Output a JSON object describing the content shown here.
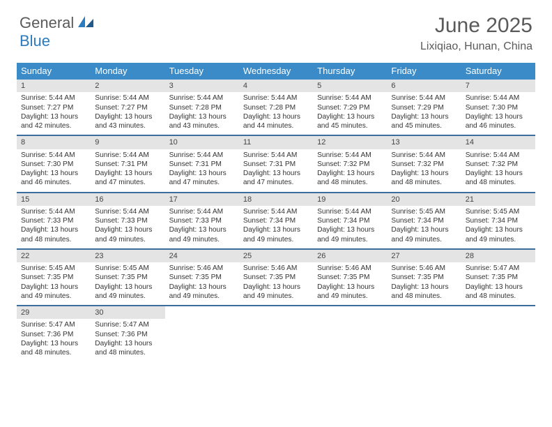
{
  "logo": {
    "general": "General",
    "blue": "Blue"
  },
  "title": "June 2025",
  "location": "Lixiqiao, Hunan, China",
  "colors": {
    "header_bg": "#3b8bc8",
    "header_text": "#ffffff",
    "row_border": "#3b6e9e",
    "daynum_bg": "#e4e4e4",
    "text": "#333333",
    "title_color": "#5a5a5a",
    "logo_blue": "#2b7bbf"
  },
  "day_headers": [
    "Sunday",
    "Monday",
    "Tuesday",
    "Wednesday",
    "Thursday",
    "Friday",
    "Saturday"
  ],
  "weeks": [
    [
      {
        "num": "1",
        "sunrise": "5:44 AM",
        "sunset": "7:27 PM",
        "daylight": "13 hours and 42 minutes."
      },
      {
        "num": "2",
        "sunrise": "5:44 AM",
        "sunset": "7:27 PM",
        "daylight": "13 hours and 43 minutes."
      },
      {
        "num": "3",
        "sunrise": "5:44 AM",
        "sunset": "7:28 PM",
        "daylight": "13 hours and 43 minutes."
      },
      {
        "num": "4",
        "sunrise": "5:44 AM",
        "sunset": "7:28 PM",
        "daylight": "13 hours and 44 minutes."
      },
      {
        "num": "5",
        "sunrise": "5:44 AM",
        "sunset": "7:29 PM",
        "daylight": "13 hours and 45 minutes."
      },
      {
        "num": "6",
        "sunrise": "5:44 AM",
        "sunset": "7:29 PM",
        "daylight": "13 hours and 45 minutes."
      },
      {
        "num": "7",
        "sunrise": "5:44 AM",
        "sunset": "7:30 PM",
        "daylight": "13 hours and 46 minutes."
      }
    ],
    [
      {
        "num": "8",
        "sunrise": "5:44 AM",
        "sunset": "7:30 PM",
        "daylight": "13 hours and 46 minutes."
      },
      {
        "num": "9",
        "sunrise": "5:44 AM",
        "sunset": "7:31 PM",
        "daylight": "13 hours and 47 minutes."
      },
      {
        "num": "10",
        "sunrise": "5:44 AM",
        "sunset": "7:31 PM",
        "daylight": "13 hours and 47 minutes."
      },
      {
        "num": "11",
        "sunrise": "5:44 AM",
        "sunset": "7:31 PM",
        "daylight": "13 hours and 47 minutes."
      },
      {
        "num": "12",
        "sunrise": "5:44 AM",
        "sunset": "7:32 PM",
        "daylight": "13 hours and 48 minutes."
      },
      {
        "num": "13",
        "sunrise": "5:44 AM",
        "sunset": "7:32 PM",
        "daylight": "13 hours and 48 minutes."
      },
      {
        "num": "14",
        "sunrise": "5:44 AM",
        "sunset": "7:32 PM",
        "daylight": "13 hours and 48 minutes."
      }
    ],
    [
      {
        "num": "15",
        "sunrise": "5:44 AM",
        "sunset": "7:33 PM",
        "daylight": "13 hours and 48 minutes."
      },
      {
        "num": "16",
        "sunrise": "5:44 AM",
        "sunset": "7:33 PM",
        "daylight": "13 hours and 49 minutes."
      },
      {
        "num": "17",
        "sunrise": "5:44 AM",
        "sunset": "7:33 PM",
        "daylight": "13 hours and 49 minutes."
      },
      {
        "num": "18",
        "sunrise": "5:44 AM",
        "sunset": "7:34 PM",
        "daylight": "13 hours and 49 minutes."
      },
      {
        "num": "19",
        "sunrise": "5:44 AM",
        "sunset": "7:34 PM",
        "daylight": "13 hours and 49 minutes."
      },
      {
        "num": "20",
        "sunrise": "5:45 AM",
        "sunset": "7:34 PM",
        "daylight": "13 hours and 49 minutes."
      },
      {
        "num": "21",
        "sunrise": "5:45 AM",
        "sunset": "7:34 PM",
        "daylight": "13 hours and 49 minutes."
      }
    ],
    [
      {
        "num": "22",
        "sunrise": "5:45 AM",
        "sunset": "7:35 PM",
        "daylight": "13 hours and 49 minutes."
      },
      {
        "num": "23",
        "sunrise": "5:45 AM",
        "sunset": "7:35 PM",
        "daylight": "13 hours and 49 minutes."
      },
      {
        "num": "24",
        "sunrise": "5:46 AM",
        "sunset": "7:35 PM",
        "daylight": "13 hours and 49 minutes."
      },
      {
        "num": "25",
        "sunrise": "5:46 AM",
        "sunset": "7:35 PM",
        "daylight": "13 hours and 49 minutes."
      },
      {
        "num": "26",
        "sunrise": "5:46 AM",
        "sunset": "7:35 PM",
        "daylight": "13 hours and 49 minutes."
      },
      {
        "num": "27",
        "sunrise": "5:46 AM",
        "sunset": "7:35 PM",
        "daylight": "13 hours and 48 minutes."
      },
      {
        "num": "28",
        "sunrise": "5:47 AM",
        "sunset": "7:35 PM",
        "daylight": "13 hours and 48 minutes."
      }
    ],
    [
      {
        "num": "29",
        "sunrise": "5:47 AM",
        "sunset": "7:36 PM",
        "daylight": "13 hours and 48 minutes."
      },
      {
        "num": "30",
        "sunrise": "5:47 AM",
        "sunset": "7:36 PM",
        "daylight": "13 hours and 48 minutes."
      },
      null,
      null,
      null,
      null,
      null
    ]
  ],
  "labels": {
    "sunrise": "Sunrise:",
    "sunset": "Sunset:",
    "daylight": "Daylight:"
  }
}
